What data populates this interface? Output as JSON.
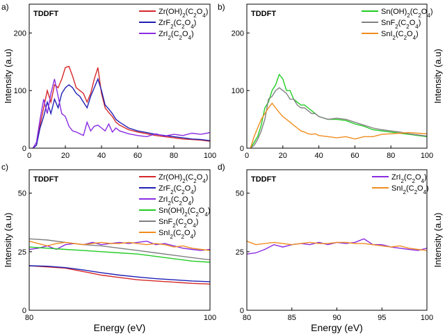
{
  "chart_data": [
    {
      "type": "line",
      "panel_label": "a)",
      "tag": "TDDFT",
      "xlabel": "",
      "ylabel": "Intensity (a.u)",
      "xlim": [
        0,
        100
      ],
      "ylim": [
        0,
        250
      ],
      "xticks": [
        0,
        20,
        40,
        60,
        80,
        100
      ],
      "yticks": [
        0,
        100,
        200
      ],
      "legend": [
        {
          "name": "Zr(OH)",
          "sub": "2",
          "tail": "(C",
          "sub2": "2",
          "tail2": "O",
          "sub3": "4",
          "end": ")",
          "color": "#d62728"
        },
        {
          "name": "ZrF",
          "sub": "2",
          "tail": "(C",
          "sub2": "2",
          "tail2": "O",
          "sub3": "4",
          "end": ")",
          "color": "#1f1fb4"
        },
        {
          "name": "ZrI",
          "sub": "2",
          "tail": "(C",
          "sub2": "2",
          "tail2": "O",
          "sub3": "4",
          "end": ")",
          "color": "#8a2be2"
        }
      ],
      "series": [
        {
          "name": "Zr(OH)2(C2O4)",
          "color": "#d62728",
          "x": [
            2,
            4,
            6,
            8,
            10,
            12,
            14,
            16,
            18,
            20,
            22,
            24,
            26,
            28,
            30,
            32,
            34,
            36,
            38,
            40,
            42,
            44,
            46,
            48,
            50,
            55,
            60,
            65,
            70,
            75,
            80,
            85,
            90,
            95,
            100
          ],
          "y": [
            0,
            5,
            40,
            70,
            100,
            80,
            110,
            105,
            120,
            140,
            142,
            125,
            105,
            100,
            95,
            80,
            95,
            120,
            140,
            95,
            70,
            62,
            55,
            45,
            40,
            32,
            28,
            25,
            22,
            20,
            18,
            16,
            15,
            14,
            12
          ]
        },
        {
          "name": "ZrF2(C2O4)",
          "color": "#1f1fb4",
          "x": [
            2,
            4,
            6,
            8,
            10,
            12,
            14,
            16,
            18,
            20,
            22,
            24,
            26,
            28,
            30,
            32,
            34,
            36,
            38,
            40,
            42,
            44,
            46,
            48,
            50,
            55,
            60,
            65,
            70,
            75,
            80,
            85,
            90,
            95,
            100
          ],
          "y": [
            0,
            5,
            35,
            55,
            80,
            60,
            85,
            70,
            95,
            105,
            110,
            105,
            95,
            90,
            80,
            70,
            90,
            105,
            120,
            100,
            75,
            68,
            60,
            50,
            45,
            35,
            30,
            27,
            24,
            22,
            20,
            18,
            16,
            15,
            13
          ]
        },
        {
          "name": "ZrI2(C2O4)",
          "color": "#8a2be2",
          "x": [
            2,
            4,
            6,
            8,
            10,
            12,
            14,
            16,
            18,
            20,
            22,
            24,
            26,
            28,
            30,
            32,
            34,
            36,
            38,
            40,
            42,
            44,
            46,
            48,
            50,
            55,
            60,
            65,
            70,
            75,
            80,
            85,
            90,
            95,
            100
          ],
          "y": [
            0,
            10,
            50,
            85,
            60,
            95,
            120,
            90,
            60,
            55,
            38,
            30,
            28,
            25,
            22,
            45,
            30,
            38,
            40,
            35,
            30,
            42,
            28,
            35,
            30,
            25,
            22,
            20,
            25,
            21,
            24,
            22,
            26,
            24,
            27
          ]
        }
      ]
    },
    {
      "type": "line",
      "panel_label": "b)",
      "tag": "TDDFT",
      "xlabel": "",
      "ylabel": "Intensity (a.u)",
      "xlim": [
        0,
        100
      ],
      "ylim": [
        0,
        250
      ],
      "xticks": [
        0,
        20,
        40,
        60,
        80,
        100
      ],
      "yticks": [
        0,
        100,
        200
      ],
      "legend": [
        {
          "name": "Sn(OH)",
          "sub": "2",
          "tail": "(C",
          "sub2": "2",
          "tail2": "O",
          "sub3": "4",
          "end": ")",
          "color": "#22cc22"
        },
        {
          "name": "SnF",
          "sub": "2",
          "tail": "(C",
          "sub2": "2",
          "tail2": "O",
          "sub3": "4",
          "end": ")",
          "color": "#808080"
        },
        {
          "name": "SnI",
          "sub": "2",
          "tail": "(C",
          "sub2": "2",
          "tail2": "O",
          "sub3": "4",
          "end": ")",
          "color": "#f08c1e"
        }
      ],
      "series": [
        {
          "name": "Sn(OH)2(C2O4)",
          "color": "#22cc22",
          "x": [
            2,
            4,
            6,
            8,
            10,
            12,
            14,
            16,
            18,
            20,
            22,
            24,
            26,
            28,
            30,
            32,
            34,
            36,
            38,
            40,
            45,
            50,
            55,
            60,
            65,
            70,
            75,
            80,
            85,
            90,
            95,
            100
          ],
          "y": [
            0,
            10,
            20,
            40,
            70,
            80,
            100,
            110,
            128,
            120,
            100,
            100,
            85,
            80,
            75,
            75,
            70,
            65,
            60,
            55,
            50,
            50,
            48,
            42,
            38,
            32,
            30,
            28,
            26,
            24,
            22,
            20
          ]
        },
        {
          "name": "SnF2(C2O4)",
          "color": "#808080",
          "x": [
            2,
            4,
            6,
            8,
            10,
            12,
            14,
            16,
            18,
            20,
            22,
            24,
            26,
            28,
            30,
            32,
            34,
            36,
            38,
            40,
            45,
            50,
            55,
            60,
            65,
            70,
            75,
            80,
            85,
            90,
            95,
            100
          ],
          "y": [
            0,
            5,
            15,
            30,
            50,
            85,
            90,
            100,
            105,
            100,
            95,
            85,
            85,
            75,
            70,
            70,
            65,
            60,
            60,
            55,
            50,
            52,
            50,
            45,
            40,
            35,
            32,
            30,
            28,
            25,
            23,
            21
          ]
        },
        {
          "name": "SnI2(C2O4)",
          "color": "#f08c1e",
          "x": [
            2,
            4,
            6,
            8,
            10,
            12,
            14,
            16,
            18,
            20,
            22,
            24,
            26,
            28,
            30,
            32,
            34,
            36,
            38,
            40,
            45,
            50,
            55,
            60,
            65,
            70,
            75,
            80,
            85,
            90,
            95,
            100
          ],
          "y": [
            0,
            20,
            35,
            50,
            60,
            70,
            78,
            70,
            62,
            55,
            50,
            45,
            40,
            35,
            30,
            28,
            25,
            24,
            25,
            22,
            20,
            18,
            20,
            16,
            20,
            20,
            24,
            25,
            26,
            27,
            26,
            25
          ]
        }
      ]
    },
    {
      "type": "line",
      "panel_label": "c)",
      "tag": "TDDFT",
      "xlabel": "Energy (eV)",
      "ylabel": "Intensity (a.u)",
      "xlim": [
        80,
        100
      ],
      "ylim": [
        0,
        60
      ],
      "xticks": [
        80,
        100
      ],
      "yticks": [
        0,
        25,
        50
      ],
      "legend": [
        {
          "name": "Zr(OH)",
          "sub": "2",
          "tail": "(C",
          "sub2": "2",
          "tail2": "O",
          "sub3": "4",
          "end": ")",
          "color": "#d62728"
        },
        {
          "name": "ZrF",
          "sub": "2",
          "tail": "(C",
          "sub2": "2",
          "tail2": "O",
          "sub3": "4",
          "end": ")",
          "color": "#1f1fb4"
        },
        {
          "name": "ZrI",
          "sub": "2",
          "tail": "(C",
          "sub2": "2",
          "tail2": "O",
          "sub3": "4",
          "end": ")",
          "color": "#8a2be2"
        },
        {
          "name": "Sn(OH)",
          "sub": "2",
          "tail": "(C",
          "sub2": "2",
          "tail2": "O",
          "sub3": "4",
          "end": ")",
          "color": "#22cc22"
        },
        {
          "name": "SnF",
          "sub": "2",
          "tail": "(C",
          "sub2": "2",
          "tail2": "O",
          "sub3": "4",
          "end": ")",
          "color": "#808080"
        },
        {
          "name": "SnI",
          "sub": "2",
          "tail": "(C",
          "sub2": "2",
          "tail2": "O",
          "sub3": "4",
          "end": ")",
          "color": "#f08c1e"
        }
      ],
      "series": [
        {
          "name": "Zr(OH)2(C2O4)",
          "color": "#d62728",
          "x": [
            80,
            82,
            84,
            86,
            88,
            90,
            92,
            94,
            96,
            98,
            100
          ],
          "y": [
            19,
            18.5,
            18,
            16.5,
            15,
            14,
            13,
            12.5,
            12,
            11.5,
            11.2
          ]
        },
        {
          "name": "ZrF2(C2O4)",
          "color": "#1f1fb4",
          "x": [
            80,
            82,
            84,
            86,
            88,
            90,
            92,
            94,
            96,
            98,
            100
          ],
          "y": [
            19,
            18.8,
            18.2,
            17.2,
            16,
            15,
            14.2,
            13.5,
            13,
            12.5,
            12.2
          ]
        },
        {
          "name": "ZrI2(C2O4)",
          "color": "#8a2be2",
          "x": [
            80,
            81,
            82,
            83,
            84,
            85,
            86,
            87,
            88,
            89,
            90,
            91,
            92,
            93,
            94,
            95,
            96,
            97,
            98,
            99,
            100
          ],
          "y": [
            26,
            26.5,
            27.5,
            26,
            28,
            28.5,
            28,
            29,
            28,
            28.5,
            29,
            28.5,
            29,
            29.5,
            28,
            28.5,
            27.5,
            26.5,
            26,
            25.5,
            26
          ]
        },
        {
          "name": "Sn(OH)2(C2O4)",
          "color": "#22cc22",
          "x": [
            80,
            82,
            84,
            86,
            88,
            90,
            92,
            94,
            96,
            98,
            100
          ],
          "y": [
            27,
            26.5,
            26,
            25.5,
            25,
            24.5,
            24,
            23,
            22,
            21,
            20.5
          ]
        },
        {
          "name": "SnF2(C2O4)",
          "color": "#808080",
          "x": [
            80,
            82,
            84,
            86,
            88,
            90,
            92,
            94,
            96,
            98,
            100
          ],
          "y": [
            30.5,
            30,
            29,
            28,
            27.5,
            26.5,
            25.5,
            24.5,
            23.5,
            22.5,
            21.5
          ]
        },
        {
          "name": "SnI2(C2O4)",
          "color": "#f08c1e",
          "x": [
            80,
            81,
            82,
            83,
            84,
            85,
            86,
            87,
            88,
            89,
            90,
            91,
            92,
            93,
            94,
            95,
            96,
            97,
            98,
            99,
            100
          ],
          "y": [
            29.5,
            28.5,
            27.5,
            28.5,
            29,
            28.5,
            28,
            28.5,
            29,
            28.5,
            28.5,
            29,
            28.5,
            28,
            28.5,
            28,
            27,
            27.5,
            26.5,
            26,
            25.5
          ]
        }
      ]
    },
    {
      "type": "line",
      "panel_label": "d)",
      "tag": "TDDFT",
      "xlabel": "Energy (eV)",
      "ylabel": "Intensity (a.u)",
      "xlim": [
        80,
        100
      ],
      "ylim": [
        0,
        60
      ],
      "xticks": [
        80,
        85,
        90,
        95,
        100
      ],
      "yticks": [
        0,
        25,
        50
      ],
      "legend": [
        {
          "name": "ZrI",
          "sub": "2",
          "tail": "(C",
          "sub2": "2",
          "tail2": "O",
          "sub3": "4",
          "end": ")",
          "color": "#8a2be2"
        },
        {
          "name": "SnI",
          "sub": "2",
          "tail": "(C",
          "sub2": "2",
          "tail2": "O",
          "sub3": "4",
          "end": ")",
          "color": "#f08c1e"
        }
      ],
      "series": [
        {
          "name": "ZrI2(C2O4)",
          "color": "#8a2be2",
          "x": [
            80,
            81,
            82,
            83,
            84,
            85,
            86,
            87,
            88,
            89,
            90,
            91,
            92,
            93,
            94,
            95,
            96,
            97,
            98,
            99,
            100
          ],
          "y": [
            24,
            24.5,
            26,
            28,
            27,
            28,
            28.5,
            28,
            29,
            28,
            29,
            28.5,
            29,
            30.5,
            28,
            28,
            27,
            26.5,
            26,
            25.5,
            26.5
          ]
        },
        {
          "name": "SnI2(C2O4)",
          "color": "#f08c1e",
          "x": [
            80,
            81,
            82,
            83,
            84,
            85,
            86,
            87,
            88,
            89,
            90,
            91,
            92,
            93,
            94,
            95,
            96,
            97,
            98,
            99,
            100
          ],
          "y": [
            29.5,
            28,
            28.5,
            29,
            28.5,
            28,
            28.5,
            29,
            28.5,
            28.5,
            29,
            29,
            28.5,
            28.5,
            28,
            27.5,
            27,
            27.5,
            26.5,
            26,
            25.5
          ]
        }
      ]
    }
  ]
}
